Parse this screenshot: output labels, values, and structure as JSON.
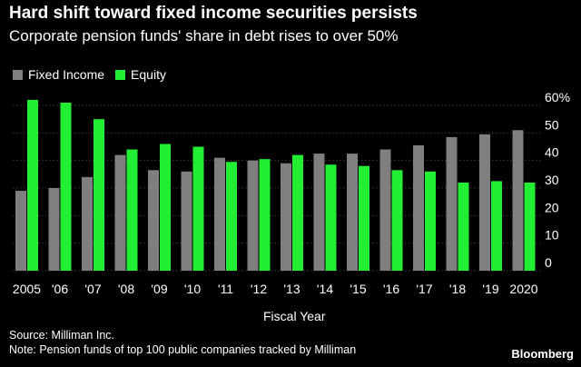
{
  "header": {
    "title": "Hard shift toward fixed income securities persists",
    "subtitle": "Corporate pension funds' share in debt rises to over 50%"
  },
  "legend": {
    "items": [
      {
        "label": "Fixed Income",
        "color": "#7f7f7f"
      },
      {
        "label": "Equity",
        "color": "#22ee33"
      }
    ]
  },
  "footer": {
    "source": "Source: Milliman Inc.",
    "note": "Note: Pension funds of top 100 public companies tracked by Milliman",
    "brand": "Bloomberg"
  },
  "chart_data": {
    "type": "bar",
    "xlabel": "Fiscal Year",
    "ylabel": "",
    "ylim": [
      0,
      60
    ],
    "yticks": [
      "60%",
      "50",
      "40",
      "30",
      "20",
      "10",
      "0"
    ],
    "ytick_values": [
      60,
      50,
      40,
      30,
      20,
      10,
      0
    ],
    "grid": true,
    "y_axis_side": "right",
    "categories": [
      "2005",
      "'06",
      "'07",
      "'08",
      "'09",
      "'10",
      "'11",
      "'12",
      "'13",
      "'14",
      "'15",
      "'16",
      "'17",
      "'18",
      "'19",
      "2020"
    ],
    "series": [
      {
        "name": "Fixed Income",
        "color": "#7f7f7f",
        "values": [
          29,
          30,
          34,
          42,
          36.5,
          36,
          41,
          40,
          39,
          42.5,
          42.5,
          44,
          45.5,
          48.5,
          49.5,
          51
        ]
      },
      {
        "name": "Equity",
        "color": "#22ee33",
        "values": [
          62,
          61,
          55,
          44,
          46,
          45,
          39.5,
          40.5,
          42,
          38.5,
          38,
          36.5,
          36,
          32,
          32.5,
          32
        ]
      }
    ]
  }
}
